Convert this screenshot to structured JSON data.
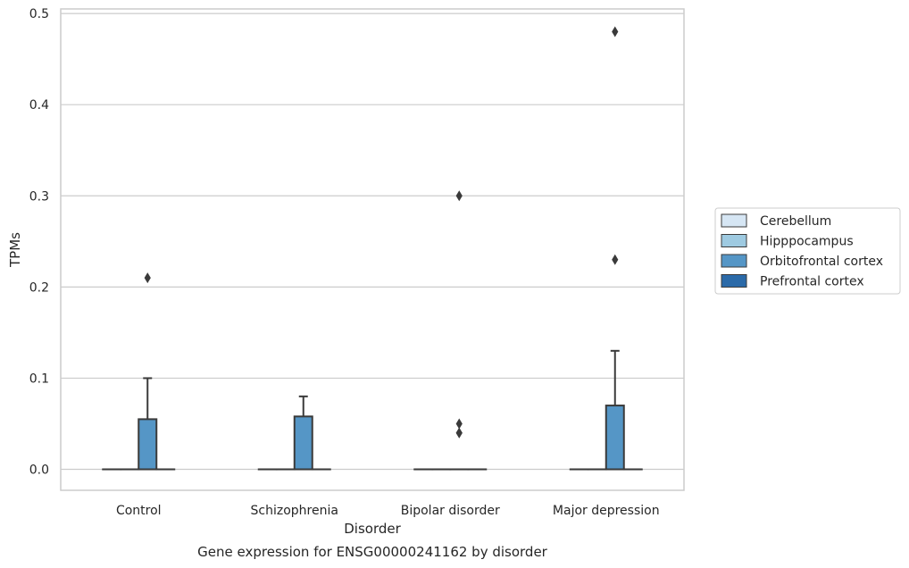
{
  "chart_data": {
    "type": "box",
    "caption": "Gene expression for ENSG00000241162 by disorder",
    "xlabel": "Disorder",
    "ylabel": "TPMs",
    "ylim": [
      -0.023,
      0.505
    ],
    "yticks": [
      "0.0",
      "0.1",
      "0.2",
      "0.3",
      "0.4",
      "0.5"
    ],
    "ytick_values": [
      0,
      0.1,
      0.2,
      0.3,
      0.4,
      0.5
    ],
    "grid": true,
    "legend_position": "right",
    "categories": [
      "Control",
      "Schizophrenia",
      "Bipolar disorder",
      "Major depression"
    ],
    "series": [
      {
        "name": "Cerebellum",
        "color": "#d6e6f4",
        "boxes": [
          {
            "q1": 0,
            "median": 0,
            "q3": 0,
            "whislo": 0,
            "whishi": 0,
            "fliers": []
          },
          {
            "q1": 0,
            "median": 0,
            "q3": 0,
            "whislo": 0,
            "whishi": 0,
            "fliers": []
          },
          {
            "q1": 0,
            "median": 0,
            "q3": 0,
            "whislo": 0,
            "whishi": 0,
            "fliers": []
          },
          {
            "q1": 0,
            "median": 0,
            "q3": 0,
            "whislo": 0,
            "whishi": 0,
            "fliers": []
          }
        ]
      },
      {
        "name": "Hipppocampus",
        "color": "#9ecae1",
        "boxes": [
          {
            "q1": 0,
            "median": 0,
            "q3": 0,
            "whislo": 0,
            "whishi": 0,
            "fliers": []
          },
          {
            "q1": 0,
            "median": 0,
            "q3": 0,
            "whislo": 0,
            "whishi": 0,
            "fliers": []
          },
          {
            "q1": 0,
            "median": 0,
            "q3": 0,
            "whislo": 0,
            "whishi": 0,
            "fliers": []
          },
          {
            "q1": 0,
            "median": 0,
            "q3": 0,
            "whislo": 0,
            "whishi": 0,
            "fliers": []
          }
        ]
      },
      {
        "name": "Orbitofrontal cortex",
        "color": "#5596c6",
        "boxes": [
          {
            "q1": 0,
            "median": 0,
            "q3": 0.055,
            "whislo": 0,
            "whishi": 0.1,
            "fliers": [
              0.21
            ]
          },
          {
            "q1": 0,
            "median": 0,
            "q3": 0.058,
            "whislo": 0,
            "whishi": 0.08,
            "fliers": []
          },
          {
            "q1": 0,
            "median": 0,
            "q3": 0,
            "whislo": 0,
            "whishi": 0,
            "fliers": [
              0.3,
              0.05,
              0.04,
              0.04
            ]
          },
          {
            "q1": 0,
            "median": 0,
            "q3": 0.07,
            "whislo": 0,
            "whishi": 0.13,
            "fliers": [
              0.48,
              0.23
            ]
          }
        ]
      },
      {
        "name": "Prefrontal cortex",
        "color": "#2b6aa8",
        "boxes": [
          {
            "q1": 0,
            "median": 0,
            "q3": 0,
            "whislo": 0,
            "whishi": 0,
            "fliers": []
          },
          {
            "q1": 0,
            "median": 0,
            "q3": 0,
            "whislo": 0,
            "whishi": 0,
            "fliers": []
          },
          {
            "q1": 0,
            "median": 0,
            "q3": 0,
            "whislo": 0,
            "whishi": 0,
            "fliers": []
          },
          {
            "q1": 0,
            "median": 0,
            "q3": 0,
            "whislo": 0,
            "whishi": 0,
            "fliers": []
          }
        ]
      }
    ]
  }
}
